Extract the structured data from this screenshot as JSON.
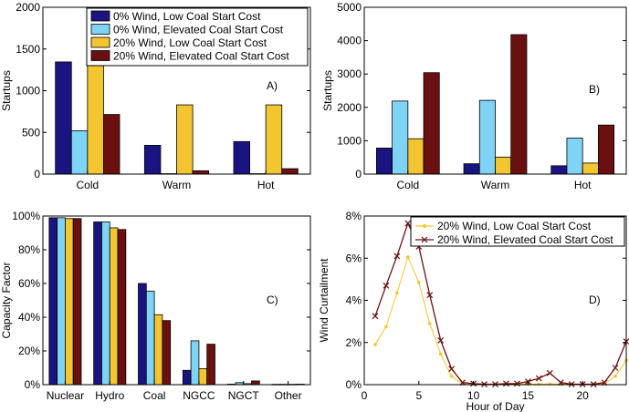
{
  "colors": {
    "s0": "#1a1480",
    "s1": "#7fd4f5",
    "s2": "#f2c531",
    "s3": "#6b1010",
    "lowLine": "#f2c531",
    "elevLine": "#6b1010"
  },
  "chart_data": [
    {
      "type": "bar",
      "panel_label": "A)",
      "title": "",
      "xlabel": "",
      "ylabel": "Startups",
      "ylim": [
        0,
        2000
      ],
      "yticks": [
        "0",
        "500",
        "1000",
        "1500",
        "2000"
      ],
      "categories": [
        "Cold",
        "Warm",
        "Hot"
      ],
      "legend_position": "top-right",
      "series": [
        {
          "name": "0% Wind, Low Coal Start Cost",
          "values": [
            1345,
            345,
            390
          ]
        },
        {
          "name": "0% Wind, Elevated Coal Start Cost",
          "values": [
            520,
            5,
            5
          ]
        },
        {
          "name": "20% Wind, Low Coal Start Cost",
          "values": [
            1540,
            830,
            830
          ]
        },
        {
          "name": "20% Wind, Elevated Coal Start Cost",
          "values": [
            715,
            40,
            65
          ]
        }
      ]
    },
    {
      "type": "bar",
      "panel_label": "B)",
      "title": "",
      "xlabel": "",
      "ylabel": "Startups",
      "ylim": [
        0,
        5000
      ],
      "yticks": [
        "0",
        "1000",
        "2000",
        "3000",
        "4000",
        "5000"
      ],
      "categories": [
        "Cold",
        "Warm",
        "Hot"
      ],
      "series": [
        {
          "name": "0% Wind, Low Coal Start Cost",
          "values": [
            780,
            310,
            250
          ]
        },
        {
          "name": "0% Wind, Elevated Coal Start Cost",
          "values": [
            2190,
            2210,
            1080
          ]
        },
        {
          "name": "20% Wind, Low Coal Start Cost",
          "values": [
            1060,
            510,
            330
          ]
        },
        {
          "name": "20% Wind, Elevated Coal Start Cost",
          "values": [
            3040,
            4180,
            1470
          ]
        }
      ]
    },
    {
      "type": "bar",
      "panel_label": "C)",
      "title": "",
      "xlabel": "",
      "ylabel": "Capacity Factor",
      "ylim": [
        0,
        100
      ],
      "yticks": [
        "0%",
        "20%",
        "40%",
        "60%",
        "80%",
        "100%"
      ],
      "categories": [
        "Nuclear",
        "Hydro",
        "Coal",
        "NGCC",
        "NGCT",
        "Other"
      ],
      "series": [
        {
          "name": "0% Wind, Low Coal Start Cost",
          "values": [
            99,
            96.5,
            60,
            8.5,
            0.3,
            0.2
          ]
        },
        {
          "name": "0% Wind, Elevated Coal Start Cost",
          "values": [
            99,
            96.5,
            55.5,
            26,
            1.2,
            0.2
          ]
        },
        {
          "name": "20% Wind, Low Coal Start Cost",
          "values": [
            98.5,
            93,
            41.5,
            9.5,
            0.6,
            0.2
          ]
        },
        {
          "name": "20% Wind, Elevated Coal Start Cost",
          "values": [
            98.5,
            92,
            38,
            24,
            2.2,
            0.3
          ]
        }
      ]
    },
    {
      "type": "line",
      "panel_label": "D)",
      "title": "",
      "xlabel": "Hour of Day",
      "ylabel": "Wind Curtailment",
      "xlim": [
        0,
        24
      ],
      "ylim": [
        0,
        8
      ],
      "xticks": [
        "0",
        "5",
        "10",
        "15",
        "20"
      ],
      "yticks": [
        "0%",
        "2%",
        "4%",
        "6%",
        "8%"
      ],
      "x": [
        1,
        2,
        3,
        4,
        5,
        6,
        7,
        8,
        9,
        10,
        11,
        12,
        13,
        14,
        15,
        16,
        17,
        18,
        19,
        20,
        21,
        22,
        23,
        24
      ],
      "legend_position": "top-right",
      "series": [
        {
          "name": "20% Wind, Low Coal Start Cost",
          "values": [
            1.9,
            2.75,
            4.35,
            6.05,
            4.85,
            2.9,
            1.45,
            0.4,
            0.03,
            0.02,
            0.02,
            0.02,
            0.02,
            0.02,
            0.03,
            0.02,
            0.03,
            0.02,
            0.02,
            0.02,
            0.02,
            0.03,
            0.4,
            1.15
          ]
        },
        {
          "name": "20% Wind, Elevated Coal Start Cost",
          "values": [
            3.25,
            4.7,
            6.1,
            7.65,
            6.55,
            4.25,
            2.1,
            0.75,
            0.1,
            0.05,
            0.02,
            0.02,
            0.05,
            0.05,
            0.15,
            0.3,
            0.55,
            0.1,
            0.02,
            0.02,
            0.02,
            0.1,
            0.8,
            2.05
          ]
        }
      ]
    }
  ]
}
